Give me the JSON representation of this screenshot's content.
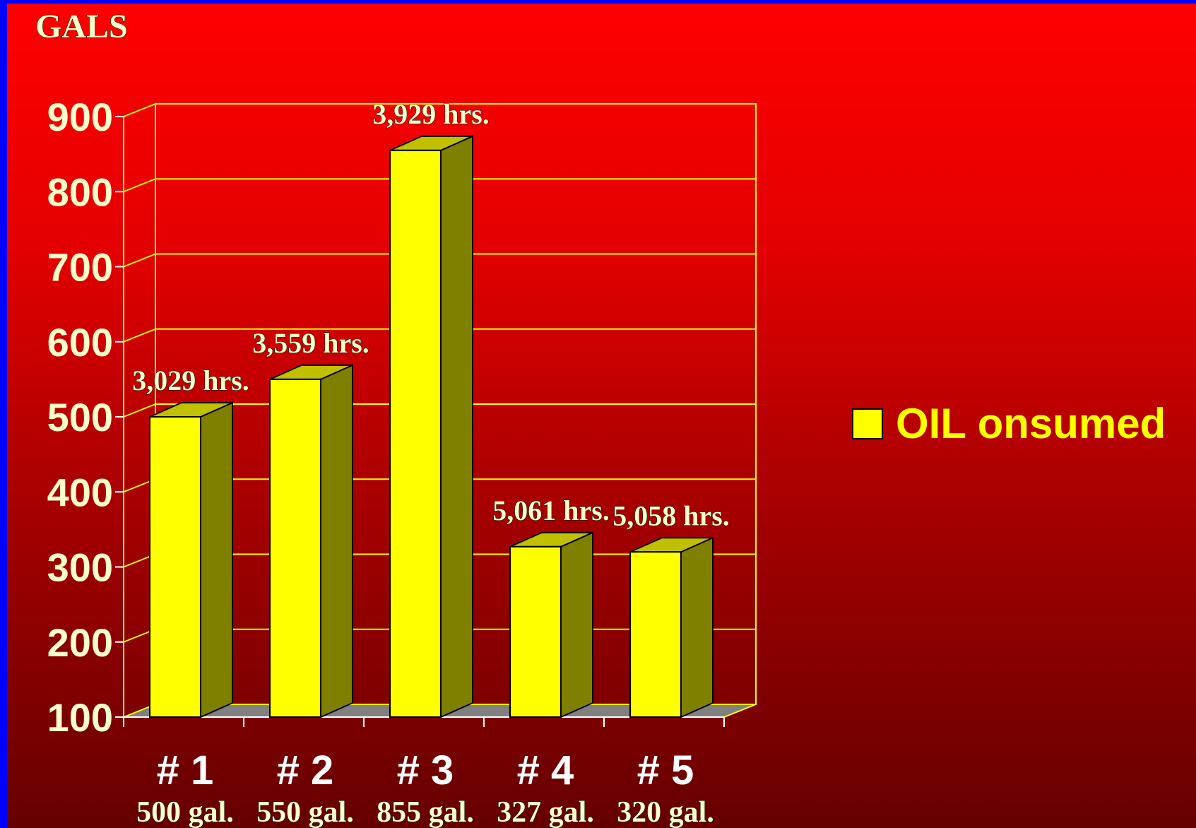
{
  "chart_data": {
    "type": "bar",
    "ylabel": "GALS",
    "ylim": [
      100,
      900
    ],
    "yticks": [
      900,
      800,
      700,
      600,
      500,
      400,
      300,
      200,
      100
    ],
    "grid": true,
    "legend_placement": "right",
    "categories": [
      "# 1",
      "# 2",
      "# 3",
      "# 4",
      "# 5"
    ],
    "sub_labels": [
      "500 gal.",
      "550 gal.",
      "855 gal.",
      "327 gal.",
      "320 gal."
    ],
    "annotations": [
      "3,029 hrs.",
      "3,559 hrs.",
      "3,929 hrs.",
      "5,061 hrs.",
      "5,058 hrs."
    ],
    "series": [
      {
        "name": "OIL onsumed",
        "values": [
          500,
          550,
          855,
          327,
          320
        ]
      }
    ]
  },
  "colors": {
    "bar_front": "#ffff00",
    "bar_side": "#808000",
    "bar_top": "#c0c000",
    "grid": "#ffff00",
    "floor": "#808080",
    "axis_text": "#ffffcc",
    "legend_text": "#ffff00"
  }
}
